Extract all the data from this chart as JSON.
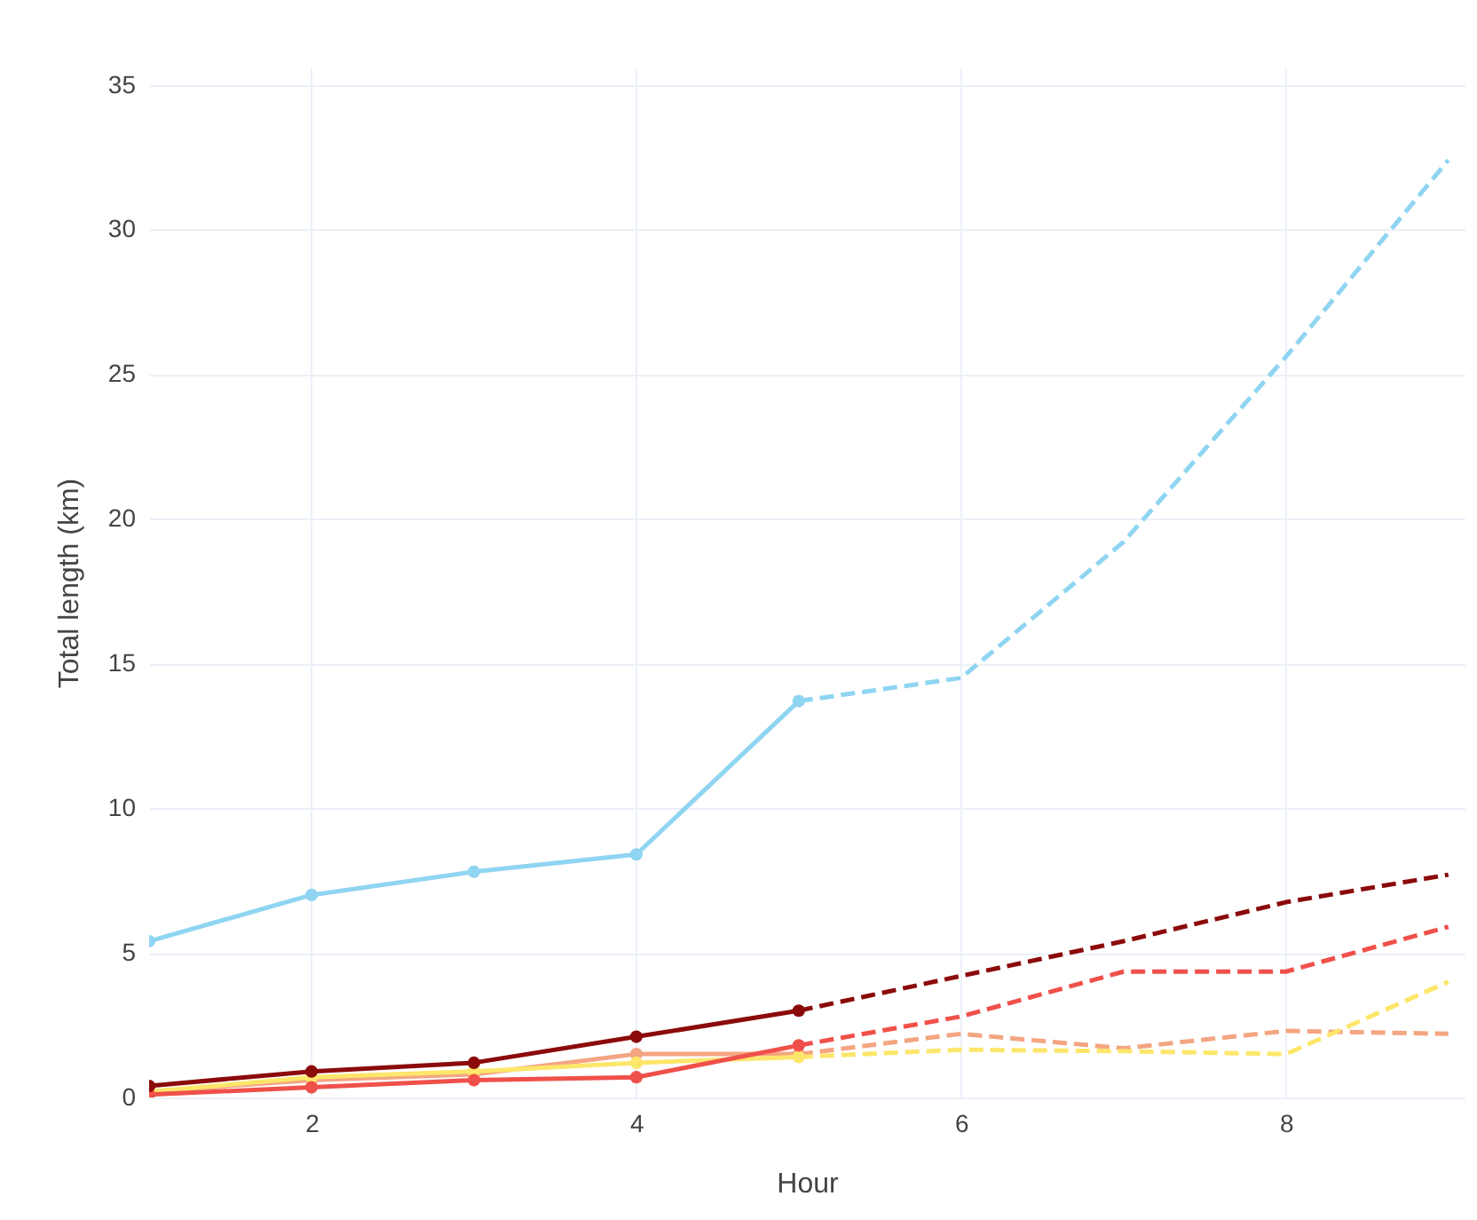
{
  "chart_data": {
    "type": "line",
    "xlabel": "Hour",
    "ylabel": "Total length (km)",
    "xlim": [
      1,
      9.1
    ],
    "ylim": [
      0,
      35.6
    ],
    "xticks": [
      2,
      4,
      6,
      8
    ],
    "yticks": [
      0,
      5,
      10,
      15,
      20,
      25,
      30,
      35
    ],
    "grid": true,
    "series": [
      {
        "color": "#8fd5f2",
        "line_style": "solid",
        "marker": "circle",
        "x": [
          1,
          2,
          3,
          4,
          5
        ],
        "values": [
          5.4,
          7.0,
          7.8,
          8.4,
          13.7
        ]
      },
      {
        "color": "#8fd5f2",
        "line_style": "dashed",
        "marker": "none",
        "x": [
          5,
          6,
          7,
          8,
          9
        ],
        "values": [
          13.7,
          14.5,
          19.2,
          25.6,
          32.4
        ]
      },
      {
        "color": "#f4a582",
        "line_style": "solid",
        "marker": "circle",
        "x": [
          1,
          2,
          3,
          4,
          5
        ],
        "values": [
          0.2,
          0.6,
          0.8,
          1.5,
          1.5
        ]
      },
      {
        "color": "#f4a582",
        "line_style": "dashed",
        "marker": "none",
        "x": [
          5,
          6,
          7,
          8,
          9
        ],
        "values": [
          1.5,
          2.2,
          1.7,
          2.3,
          2.2
        ]
      },
      {
        "color": "#fde66a",
        "line_style": "solid",
        "marker": "circle",
        "x": [
          1,
          2,
          3,
          4,
          5
        ],
        "values": [
          0.2,
          0.7,
          0.9,
          1.2,
          1.4
        ]
      },
      {
        "color": "#fde66a",
        "line_style": "dashed",
        "marker": "none",
        "x": [
          5,
          6,
          7,
          8,
          9
        ],
        "values": [
          1.4,
          1.65,
          1.6,
          1.5,
          4.0
        ]
      },
      {
        "color": "#f0504a",
        "line_style": "solid",
        "marker": "circle",
        "x": [
          1,
          2,
          3,
          4,
          5
        ],
        "values": [
          0.1,
          0.35,
          0.6,
          0.7,
          1.8
        ]
      },
      {
        "color": "#f0504a",
        "line_style": "dashed",
        "marker": "none",
        "x": [
          5,
          6,
          7,
          8,
          9
        ],
        "values": [
          1.8,
          2.8,
          4.35,
          4.35,
          5.9
        ]
      },
      {
        "color": "#8b0a0a",
        "line_style": "solid",
        "marker": "circle",
        "x": [
          1,
          2,
          3,
          4,
          5
        ],
        "values": [
          0.4,
          0.9,
          1.2,
          2.1,
          3.0
        ]
      },
      {
        "color": "#8b0a0a",
        "line_style": "dashed",
        "marker": "none",
        "x": [
          5,
          6,
          7,
          8,
          9
        ],
        "values": [
          3.0,
          4.2,
          5.4,
          6.75,
          7.7
        ]
      }
    ]
  }
}
